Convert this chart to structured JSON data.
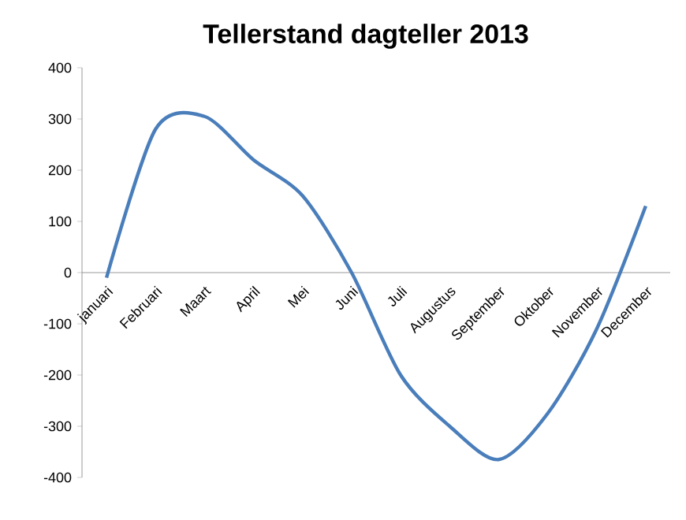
{
  "chart_data": {
    "type": "line",
    "title": "Tellerstand dagteller 2013",
    "categories": [
      "januari",
      "Februari",
      "Maart",
      "April",
      "Mei",
      "Juni",
      "Juli",
      "Augustus",
      "September",
      "Oktober",
      "November",
      "December"
    ],
    "series": [
      {
        "color": "#4a7ebb",
        "values": [
          -10,
          280,
          305,
          220,
          150,
          0,
          -200,
          -300,
          -365,
          -275,
          -110,
          130
        ]
      }
    ],
    "ylim": [
      -400,
      400
    ],
    "yticks": [
      -400,
      -300,
      -200,
      -100,
      0,
      100,
      200,
      300,
      400
    ],
    "grid": false,
    "marker": "none",
    "line_style": "solid"
  }
}
